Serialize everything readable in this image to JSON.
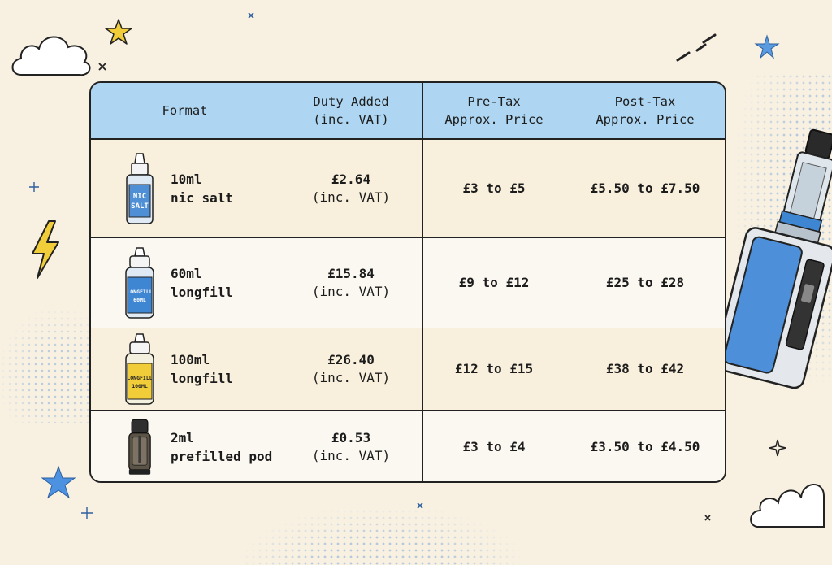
{
  "table": {
    "headers": [
      "Format",
      "Duty Added\n(inc. VAT)",
      "Pre-Tax\nApprox. Price",
      "Post-Tax\nApprox. Price"
    ],
    "rows": [
      {
        "format": "10ml\nnic salt",
        "label": "NIC\nSALT",
        "duty": "£2.64",
        "duty_note": "(inc. VAT)",
        "pre_tax": "£3 to £5",
        "post_tax": "£5.50 to £7.50",
        "color": "#4e8fd6"
      },
      {
        "format": "60ml\nlongfill",
        "label": "LONGFILL\n60ML",
        "duty": "£15.84",
        "duty_note": "(inc. VAT)",
        "pre_tax": "£9 to £12",
        "post_tax": "£25 to £28",
        "color": "#3f86d2"
      },
      {
        "format": "100ml\nlongfill",
        "label": "LONGFILL\n100ML",
        "duty": "£26.40",
        "duty_note": "(inc. VAT)",
        "pre_tax": "£12 to £15",
        "post_tax": "£38 to £42",
        "color": "#f2cd3a"
      },
      {
        "format": "2ml\nprefilled pod",
        "label": "",
        "duty": "£0.53",
        "duty_note": "(inc. VAT)",
        "pre_tax": "£3 to £4",
        "post_tax": "£3.50 to £4.50",
        "color": "#3a3a3a"
      }
    ]
  },
  "colors": {
    "header_bg": "#aed6f2",
    "background": "#f8f1e2",
    "row_alt": "#f8efdc",
    "accent_blue": "#3f86d2",
    "star_yellow": "#f2cd3a"
  },
  "icons": [
    "cloud-icon",
    "star-icon",
    "lightning-icon",
    "sparkle-icon",
    "vape-mod-icon",
    "bottle-icon",
    "pod-icon"
  ]
}
